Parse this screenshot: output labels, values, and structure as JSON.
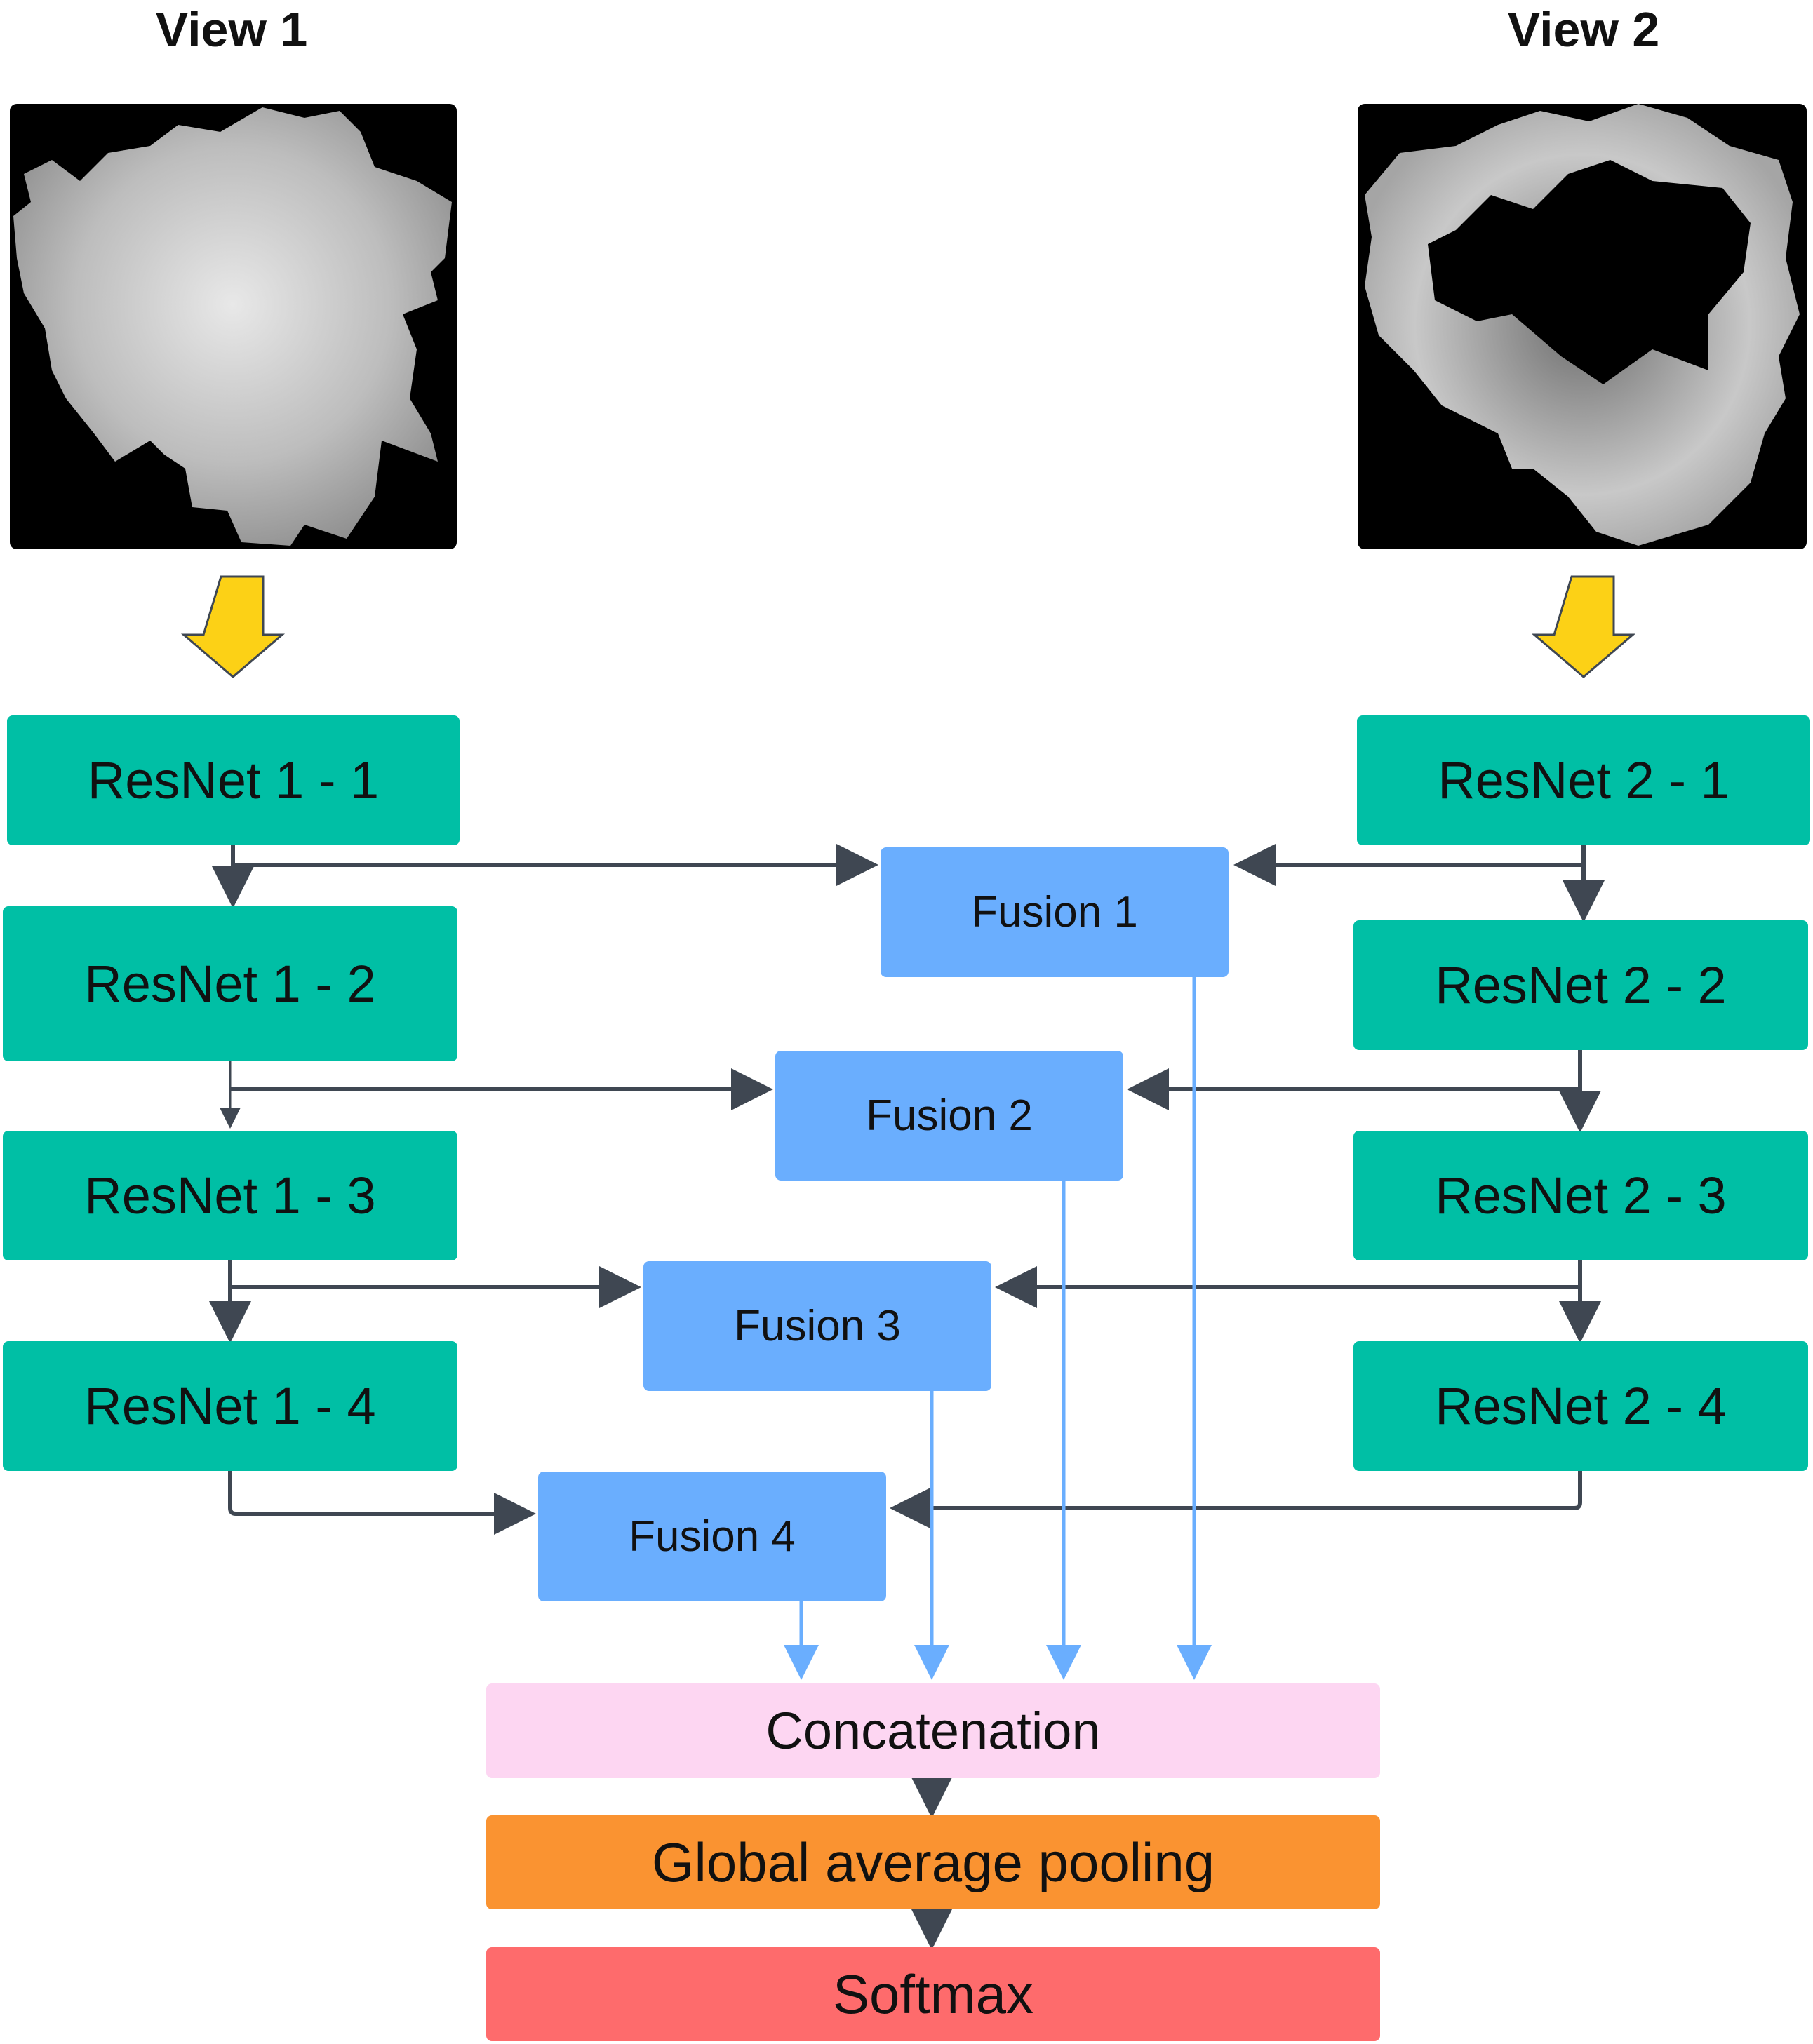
{
  "views": {
    "left": {
      "title": "View 1"
    },
    "right": {
      "title": "View 2"
    }
  },
  "branch1": [
    "ResNet 1 - 1",
    "ResNet 1 - 2",
    "ResNet 1 - 3",
    "ResNet 1 - 4"
  ],
  "branch2": [
    "ResNet 2 - 1",
    "ResNet 2 - 2",
    "ResNet 2 - 3",
    "ResNet 2 - 4"
  ],
  "fusion": [
    "Fusion 1",
    "Fusion 2",
    "Fusion 3",
    "Fusion 4"
  ],
  "head": {
    "concat": "Concatenation",
    "gap": "Global average pooling",
    "softmax": "Softmax"
  },
  "colors": {
    "resnet": "#00bfa5",
    "fusion": "#6aaefe",
    "concat": "#fdd6f2",
    "gap": "#fa9331",
    "softmax": "#fe6b6c",
    "input_arrow": "#fcd116",
    "connector_dark": "#3f4752",
    "connector_blue": "#6aaefe"
  }
}
